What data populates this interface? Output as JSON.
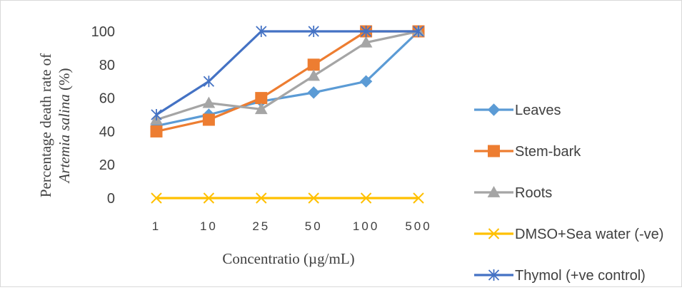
{
  "chart_data": {
    "type": "line",
    "categories": [
      "1",
      "10",
      "25",
      "50",
      "100",
      "500"
    ],
    "xlabel": "Concentratio (µg/mL)",
    "ylabel_line1": "Percentage death  rate of",
    "ylabel_line2_italic": "Artemia salina",
    "ylabel_line2_rest": " (%)",
    "ylim": [
      0,
      100
    ],
    "yticks": [
      0,
      20,
      40,
      60,
      80,
      100
    ],
    "grid": false,
    "legend_position": "right",
    "series": [
      {
        "name": "Leaves",
        "values": [
          43.3,
          50,
          58,
          63.3,
          70,
          100
        ],
        "color": "#5b9bd5",
        "marker": "diamond"
      },
      {
        "name": "Stem-bark",
        "values": [
          40,
          47,
          60,
          80,
          100,
          100
        ],
        "color": "#ed7d31",
        "marker": "square"
      },
      {
        "name": "Roots",
        "values": [
          47,
          57,
          53.3,
          73.3,
          93.3,
          100
        ],
        "color": "#a5a5a5",
        "marker": "triangle"
      },
      {
        "name": "DMSO+Sea water (-ve)",
        "values": [
          0,
          0,
          0,
          0,
          0,
          0
        ],
        "color": "#ffc000",
        "marker": "x"
      },
      {
        "name": "Thymol (+ve control)",
        "values": [
          50,
          70,
          100,
          100,
          100,
          100
        ],
        "color": "#4472c4",
        "marker": "star"
      }
    ]
  }
}
